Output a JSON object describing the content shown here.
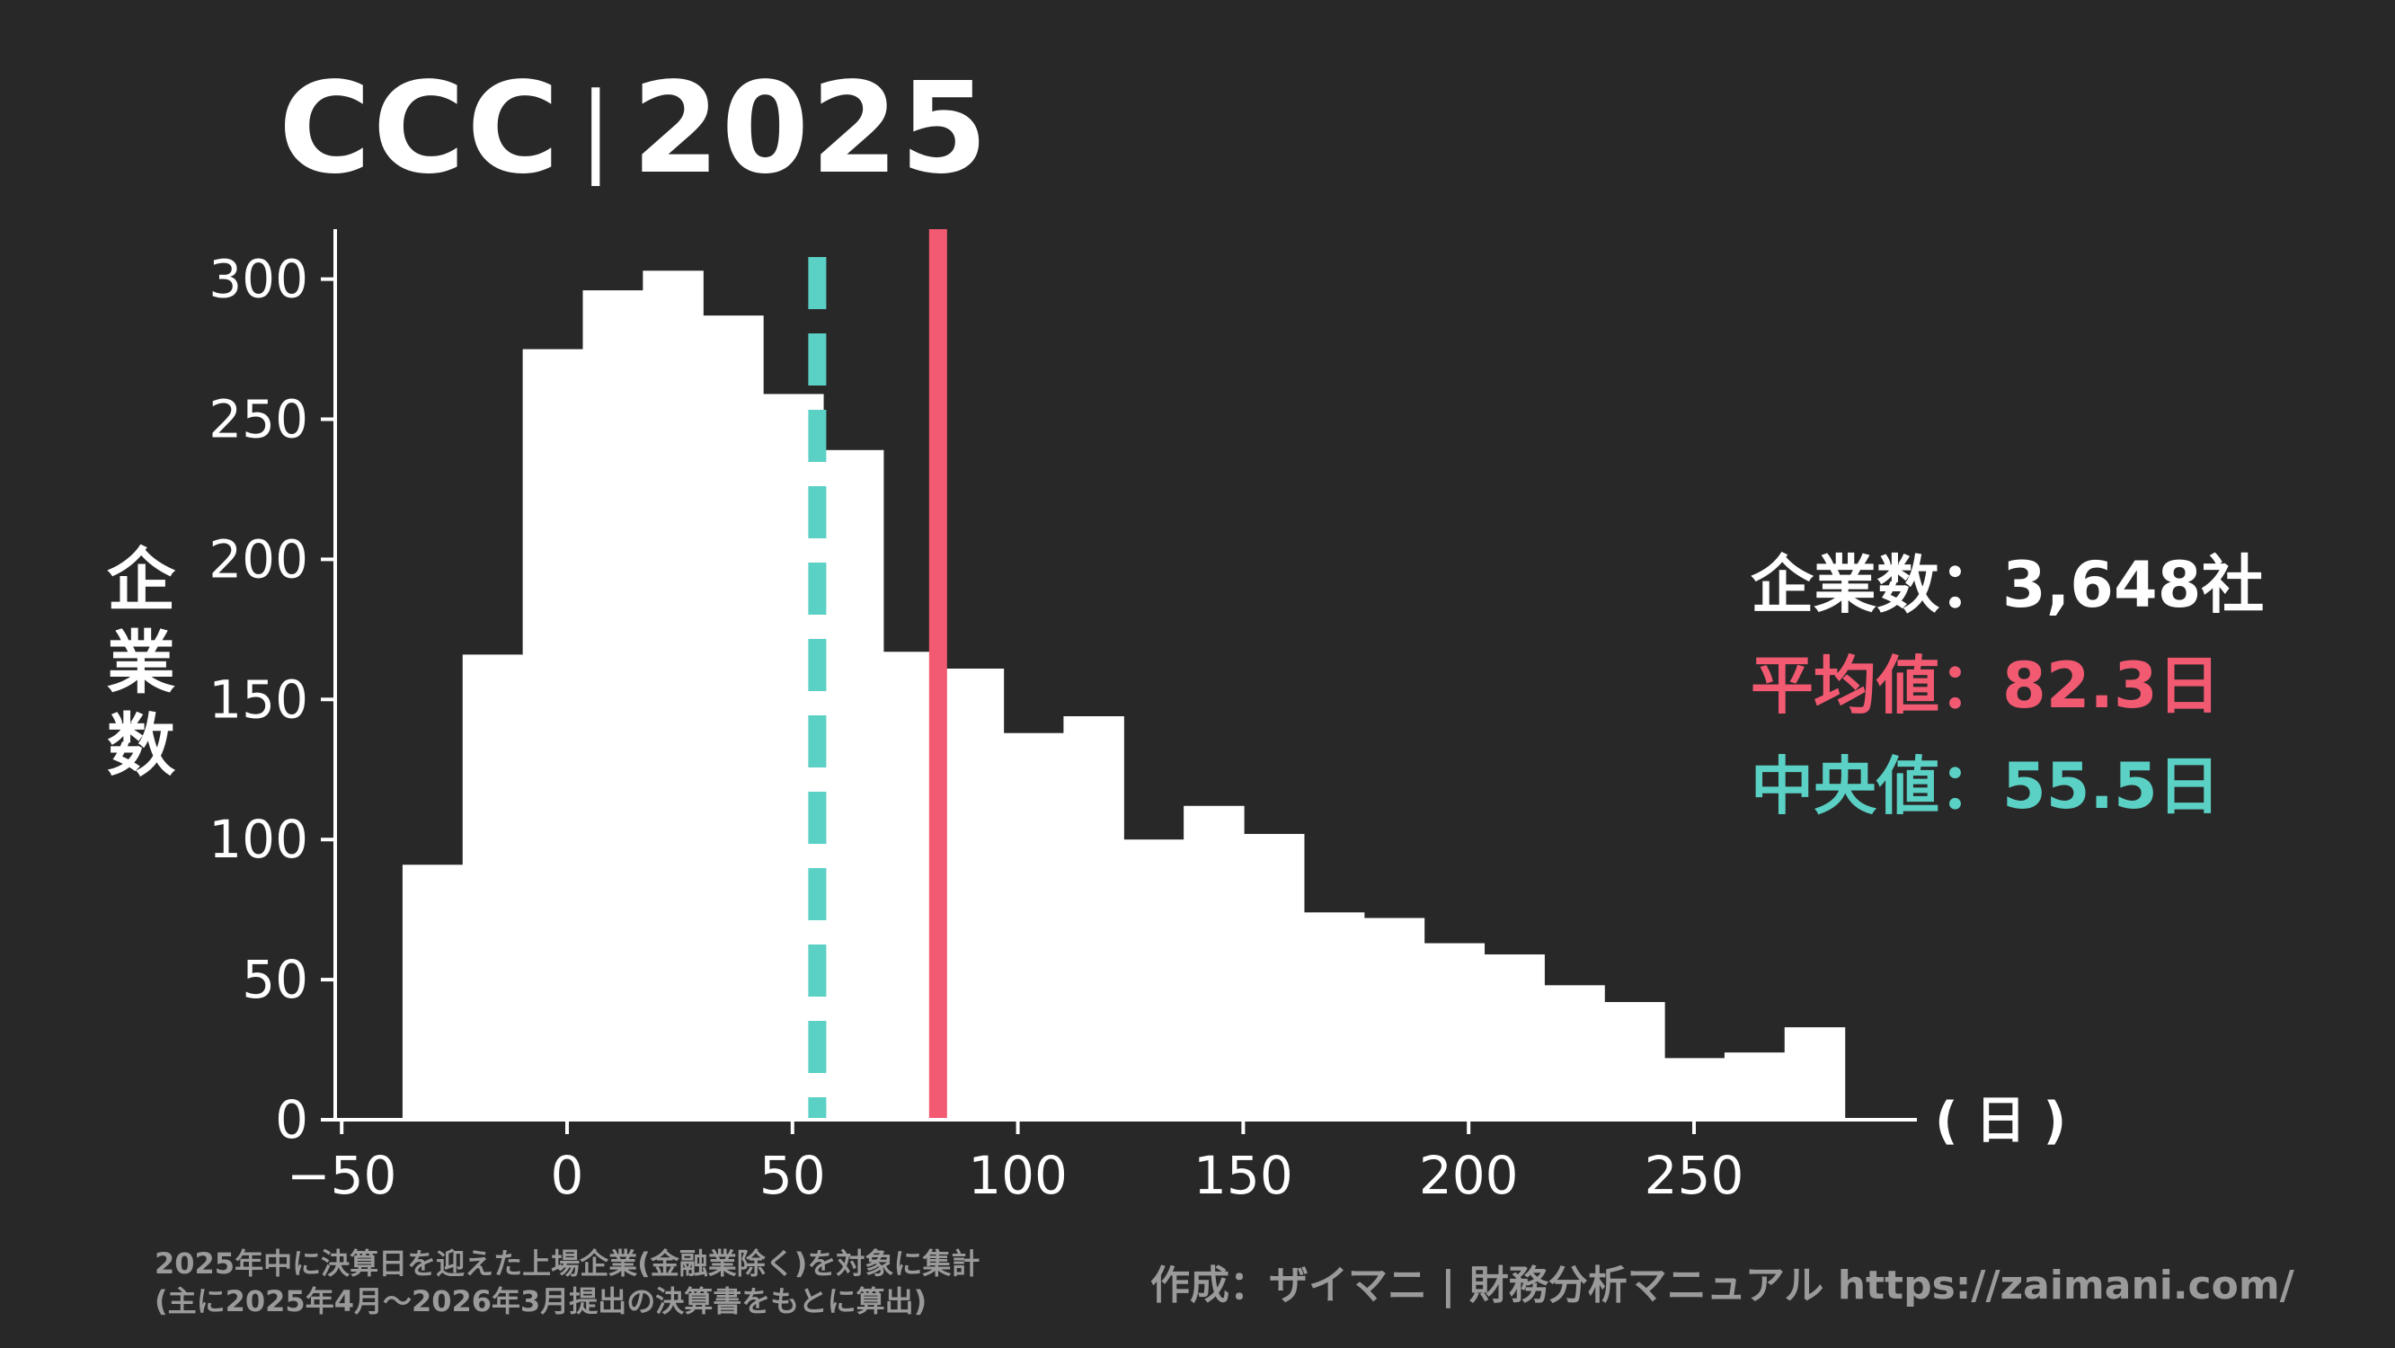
{
  "title": {
    "metric": "CCC",
    "separator": "|",
    "year": "2025"
  },
  "ylabel_chars": [
    "企",
    "業",
    "数"
  ],
  "stats": {
    "companies_label": "企業数：",
    "companies_value": "3,648社",
    "mean_label": "平均値：",
    "mean_value": "82.3日",
    "median_label": "中央値：",
    "median_value": "55.5日"
  },
  "footnote": {
    "line1": "2025年中に決算日を迎えた上場企業(金融業除く)を対象に集計",
    "line2": "(主に2025年4月～2026年3月提出の決算書をもとに算出)"
  },
  "credit": "作成：ザイマニ | 財務分析マニュアル https://zaimani.com/",
  "colors": {
    "background": "#282828",
    "bars": "#ffffff",
    "axis": "#ffffff",
    "mean": "#f25a72",
    "median": "#5bd0c4",
    "note": "#9a9a9a"
  },
  "chart_data": {
    "type": "bar",
    "subtype": "histogram",
    "bin_width": 13.33,
    "bin_starts": [
      -36.5,
      -23.17,
      -9.84,
      3.49,
      16.82,
      30.15,
      43.48,
      56.81,
      70.14,
      83.47,
      96.8,
      110.13,
      123.46,
      136.79,
      150.12,
      163.45,
      176.78,
      190.11,
      203.44,
      216.77,
      230.1,
      243.43,
      256.76,
      270.09
    ],
    "values": [
      91,
      166,
      275,
      296,
      303,
      287,
      259,
      239,
      167,
      161,
      138,
      144,
      100,
      112,
      102,
      74,
      72,
      63,
      59,
      48,
      42,
      22,
      24,
      33
    ],
    "xlim": [
      -52,
      300
    ],
    "ylim": [
      0,
      320
    ],
    "xticks": [
      -50,
      0,
      50,
      100,
      150,
      200,
      250
    ],
    "xtick_labels": [
      "−50",
      "0",
      "50",
      "100",
      "150",
      "200",
      "250"
    ],
    "yticks": [
      0,
      50,
      100,
      150,
      200,
      250,
      300
    ],
    "ytick_labels": [
      "0",
      "50",
      "100",
      "150",
      "200",
      "250",
      "300"
    ],
    "xlabel": "( 日 )",
    "ylabel": "企業数",
    "mean": 82.3,
    "median": 55.5,
    "grid": false
  }
}
